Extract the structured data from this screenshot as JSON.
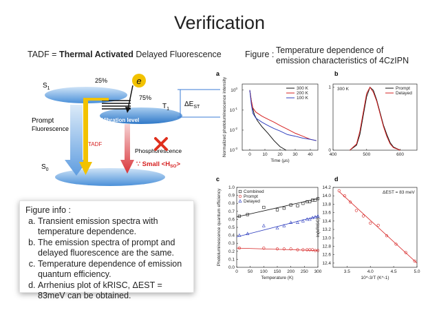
{
  "title": "Verification",
  "tadf": {
    "abbrev": "TADF = ",
    "bold": "Thermal Activated",
    "rest": " Delayed Fluorescence"
  },
  "figure_caption": {
    "lead": "Figure :",
    "line1": "Temperature dependence of",
    "line2": "emission characteristics of 4CzIPN"
  },
  "diagram": {
    "s1": "S",
    "s1_sub": "1",
    "s0": "S",
    "s0_sub": "0",
    "t1": "T",
    "t1_sub": "1",
    "electron": "e",
    "pct_25": "25%",
    "pct_75": "75%",
    "delta_est": "ΔE",
    "delta_est_sub": "ST",
    "prompt1": "Prompt",
    "prompt2": "Fluorescence",
    "vibration": "Vibration level",
    "tadf": "TADF",
    "phosphorescence": "Phosphorescence",
    "small_hso": "∵ Small <H",
    "small_hso_sub": "SO",
    "small_hso_end": ">",
    "colors": {
      "s_level": "#4a90d9",
      "prompt_arrow": "#6aa8e8",
      "tadf_arrow": "#f2c200",
      "phos_arrow": "#d9363b",
      "cross": "#e0301e"
    }
  },
  "info_box": {
    "heading": "Figure info :",
    "items": [
      "Transient emission spectra with temperature dependence.",
      "The emission spectra of prompt and delayed fluorescence are the same.",
      "Temperature dependence of emission quantum efficiency.",
      "Arrhenius plot of kRISC, ΔEST = 83meV can be obtained."
    ]
  },
  "chart_data": [
    {
      "panel": "a",
      "type": "line",
      "ylabel": "Normalized photoluminescence intensity",
      "xlabel": "Time (μs)",
      "xlim": [
        -5,
        45
      ],
      "yscale": "log",
      "ylim": [
        0.001,
        2
      ],
      "x_ticks": [
        "0",
        "10",
        "20",
        "30",
        "40"
      ],
      "y_ticks": [
        "10^0",
        "10^-1",
        "10^-2",
        "10^-3"
      ],
      "legend": "top-right",
      "series": [
        {
          "name": "300 K",
          "color": "#111111",
          "x": [
            0,
            1,
            2,
            3,
            5,
            8,
            12,
            16,
            20,
            24
          ],
          "y": [
            1,
            0.3,
            0.12,
            0.06,
            0.03,
            0.015,
            0.007,
            0.003,
            0.0015,
            0.001
          ]
        },
        {
          "name": "200 K",
          "color": "#d62020",
          "x": [
            0,
            1,
            2,
            4,
            8,
            12,
            16,
            20,
            25,
            30,
            35,
            40,
            44
          ],
          "y": [
            1,
            0.3,
            0.13,
            0.08,
            0.05,
            0.035,
            0.025,
            0.017,
            0.011,
            0.007,
            0.005,
            0.0035,
            0.003
          ]
        },
        {
          "name": "100 K",
          "color": "#2f3fbf",
          "x": [
            0,
            1,
            2,
            4,
            8,
            12,
            16,
            20,
            25,
            30,
            35,
            40,
            44
          ],
          "y": [
            1,
            0.2,
            0.07,
            0.04,
            0.025,
            0.017,
            0.012,
            0.009,
            0.006,
            0.005,
            0.004,
            0.0035,
            0.003
          ]
        }
      ]
    },
    {
      "panel": "b",
      "type": "line",
      "xlim": [
        400,
        650
      ],
      "ylim": [
        0,
        1.05
      ],
      "x_ticks": [
        "400",
        "500",
        "600"
      ],
      "y_ticks": [
        "1",
        "0"
      ],
      "annotation": "300 K",
      "legend": "top-right",
      "series": [
        {
          "name": "Prompt",
          "color": "#111111",
          "x": [
            450,
            470,
            480,
            490,
            500,
            510,
            520,
            530,
            540,
            550,
            560,
            570,
            580,
            600
          ],
          "y": [
            0,
            0.08,
            0.25,
            0.55,
            0.85,
            1.0,
            0.95,
            0.8,
            0.6,
            0.4,
            0.25,
            0.12,
            0.05,
            0
          ]
        },
        {
          "name": "Delayed",
          "color": "#d62020",
          "x": [
            450,
            470,
            480,
            490,
            500,
            510,
            520,
            530,
            540,
            550,
            560,
            570,
            580,
            600
          ],
          "y": [
            0,
            0.1,
            0.3,
            0.6,
            0.9,
            1.0,
            0.92,
            0.78,
            0.58,
            0.38,
            0.22,
            0.1,
            0.04,
            0
          ]
        }
      ]
    },
    {
      "panel": "c",
      "type": "scatter",
      "ylabel": "Photoluminescence quantum efficiency",
      "xlabel": "Temperature (K)",
      "xlim": [
        0,
        300
      ],
      "ylim": [
        0,
        1.0
      ],
      "x_ticks": [
        "0",
        "50",
        "100",
        "150",
        "200",
        "250",
        "300"
      ],
      "y_ticks": [
        "0.0",
        "0.1",
        "0.2",
        "0.3",
        "0.4",
        "0.5",
        "0.6",
        "0.7",
        "0.8",
        "0.9",
        "1.0"
      ],
      "legend": "top-left",
      "series": [
        {
          "name": "Combined",
          "color": "#111111",
          "marker": "square",
          "x": [
            10,
            40,
            100,
            150,
            175,
            200,
            225,
            245,
            260,
            270,
            280,
            290,
            300
          ],
          "y": [
            0.64,
            0.66,
            0.75,
            0.72,
            0.74,
            0.78,
            0.77,
            0.8,
            0.82,
            0.82,
            0.84,
            0.84,
            0.86
          ],
          "fit": [
            0.63,
            0.86
          ]
        },
        {
          "name": "Prompt",
          "color": "#d62020",
          "marker": "circle",
          "x": [
            10,
            100,
            150,
            175,
            200,
            225,
            245,
            260,
            270,
            280,
            290,
            300
          ],
          "y": [
            0.24,
            0.24,
            0.23,
            0.23,
            0.23,
            0.22,
            0.22,
            0.22,
            0.22,
            0.22,
            0.21,
            0.21
          ],
          "fit": [
            0.24,
            0.21
          ]
        },
        {
          "name": "Delayed",
          "color": "#2f3fbf",
          "marker": "triangle",
          "x": [
            10,
            40,
            100,
            150,
            175,
            200,
            225,
            245,
            260,
            270,
            280,
            290,
            300
          ],
          "y": [
            0.4,
            0.42,
            0.52,
            0.49,
            0.52,
            0.56,
            0.56,
            0.58,
            0.6,
            0.6,
            0.62,
            0.63,
            0.64
          ],
          "fit": [
            0.38,
            0.64
          ]
        }
      ]
    },
    {
      "panel": "d",
      "type": "scatter",
      "ylabel": "ln(kRISC)",
      "xlabel": "10^-3/T (K^-1)",
      "xlim": [
        3.2,
        5.0
      ],
      "ylim": [
        12.3,
        14.2
      ],
      "x_ticks": [
        "3.5",
        "4.0",
        "4.5",
        "5.0"
      ],
      "y_ticks": [
        "12.4",
        "12.6",
        "12.8",
        "13.0",
        "13.2",
        "13.4",
        "13.6",
        "13.8",
        "14.0",
        "14.2"
      ],
      "annotation": "ΔEST = 83 meV",
      "series": [
        {
          "name": "data",
          "color": "#d62020",
          "marker": "circle",
          "x": [
            3.33,
            3.45,
            3.57,
            3.7,
            3.85,
            4.0,
            4.17,
            4.35,
            4.55,
            4.76,
            4.95
          ],
          "y": [
            14.12,
            14.0,
            13.85,
            13.65,
            13.52,
            13.35,
            13.3,
            13.05,
            12.85,
            12.65,
            12.45
          ],
          "fit": [
            14.1,
            12.4
          ]
        }
      ]
    }
  ]
}
